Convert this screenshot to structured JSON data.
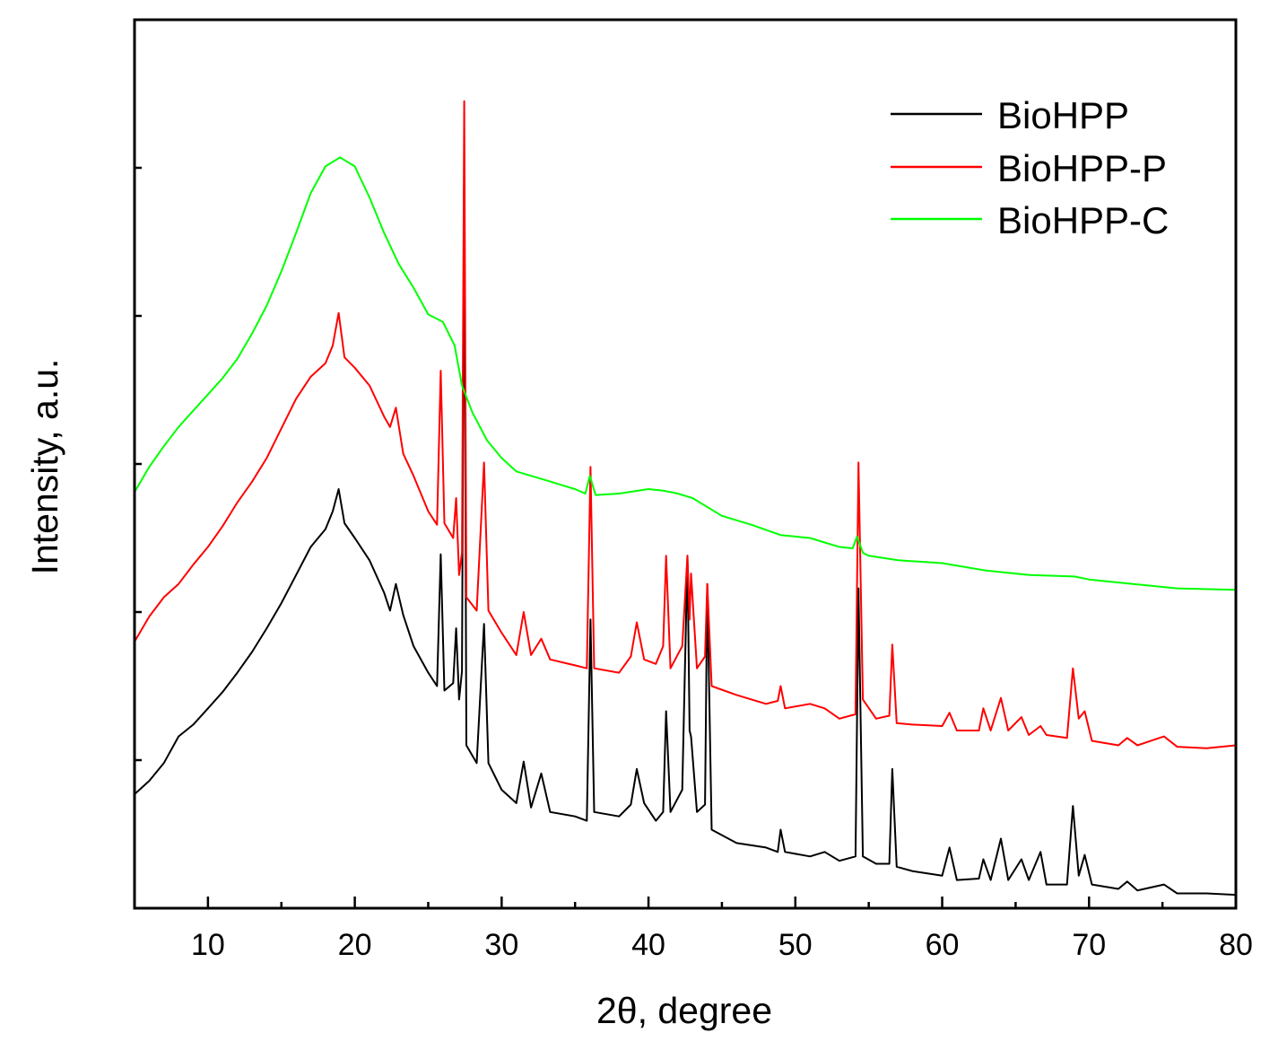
{
  "chart_data": {
    "type": "line",
    "xlabel": "2θ, degree",
    "ylabel": "Intensity, a.u.",
    "xlim": [
      5,
      80
    ],
    "ylim": [
      0,
      6
    ],
    "xticks": [
      10,
      20,
      30,
      40,
      50,
      60,
      70,
      80
    ],
    "xminor_ticks": [
      15,
      25,
      35,
      45,
      55,
      65,
      75
    ],
    "yticks": [
      1,
      2,
      3,
      4,
      5
    ],
    "ytick_labels_shown": false,
    "grid": false,
    "legend": "top-right",
    "series": [
      {
        "name": "BioHPP",
        "color": "#000000",
        "points": [
          [
            5,
            0.77
          ],
          [
            6,
            0.86
          ],
          [
            7,
            0.98
          ],
          [
            8,
            1.16
          ],
          [
            9,
            1.24
          ],
          [
            10,
            1.35
          ],
          [
            11,
            1.46
          ],
          [
            12,
            1.59
          ],
          [
            13,
            1.73
          ],
          [
            14,
            1.89
          ],
          [
            15,
            2.06
          ],
          [
            16,
            2.25
          ],
          [
            17,
            2.44
          ],
          [
            18,
            2.56
          ],
          [
            18.5,
            2.68
          ],
          [
            18.9,
            2.83
          ],
          [
            19.3,
            2.6
          ],
          [
            20,
            2.5
          ],
          [
            21,
            2.35
          ],
          [
            22,
            2.13
          ],
          [
            22.4,
            2.01
          ],
          [
            22.8,
            2.19
          ],
          [
            23.3,
            1.98
          ],
          [
            24,
            1.77
          ],
          [
            25,
            1.59
          ],
          [
            25.6,
            1.5
          ],
          [
            25.85,
            2.39
          ],
          [
            26.1,
            1.47
          ],
          [
            26.7,
            1.52
          ],
          [
            26.9,
            1.89
          ],
          [
            27.1,
            1.41
          ],
          [
            27.3,
            1.6
          ],
          [
            27.45,
            5.0
          ],
          [
            27.6,
            1.1
          ],
          [
            28.3,
            0.98
          ],
          [
            28.8,
            1.92
          ],
          [
            29.1,
            0.98
          ],
          [
            30,
            0.8
          ],
          [
            31,
            0.71
          ],
          [
            31.5,
            0.99
          ],
          [
            32,
            0.68
          ],
          [
            32.7,
            0.91
          ],
          [
            33.3,
            0.65
          ],
          [
            35,
            0.62
          ],
          [
            35.8,
            0.59
          ],
          [
            36.05,
            1.95
          ],
          [
            36.3,
            0.65
          ],
          [
            38,
            0.62
          ],
          [
            38.8,
            0.7
          ],
          [
            39.2,
            0.94
          ],
          [
            39.7,
            0.71
          ],
          [
            40.5,
            0.59
          ],
          [
            41,
            0.65
          ],
          [
            41.2,
            1.33
          ],
          [
            41.5,
            0.65
          ],
          [
            42.3,
            0.8
          ],
          [
            42.65,
            2.38
          ],
          [
            42.8,
            1.2
          ],
          [
            42.9,
            1.16
          ],
          [
            43.3,
            0.65
          ],
          [
            43.85,
            0.7
          ],
          [
            44.0,
            2.19
          ],
          [
            44.3,
            0.53
          ],
          [
            46,
            0.44
          ],
          [
            48,
            0.41
          ],
          [
            48.8,
            0.38
          ],
          [
            49.0,
            0.53
          ],
          [
            49.3,
            0.38
          ],
          [
            51,
            0.35
          ],
          [
            52,
            0.38
          ],
          [
            53,
            0.32
          ],
          [
            54.1,
            0.35
          ],
          [
            54.3,
            2.16
          ],
          [
            54.6,
            0.35
          ],
          [
            55.5,
            0.3
          ],
          [
            56.4,
            0.3
          ],
          [
            56.6,
            0.94
          ],
          [
            56.9,
            0.28
          ],
          [
            58,
            0.25
          ],
          [
            60,
            0.22
          ],
          [
            60.5,
            0.41
          ],
          [
            61,
            0.19
          ],
          [
            62.5,
            0.2
          ],
          [
            62.8,
            0.33
          ],
          [
            63.3,
            0.19
          ],
          [
            64.0,
            0.47
          ],
          [
            64.5,
            0.19
          ],
          [
            65.4,
            0.33
          ],
          [
            65.9,
            0.19
          ],
          [
            66.7,
            0.38
          ],
          [
            67.1,
            0.16
          ],
          [
            68.5,
            0.16
          ],
          [
            68.9,
            0.69
          ],
          [
            69.3,
            0.22
          ],
          [
            69.7,
            0.36
          ],
          [
            70.2,
            0.16
          ],
          [
            72,
            0.13
          ],
          [
            72.6,
            0.18
          ],
          [
            73.3,
            0.12
          ],
          [
            75.1,
            0.16
          ],
          [
            76,
            0.1
          ],
          [
            78,
            0.1
          ],
          [
            80,
            0.09
          ]
        ]
      },
      {
        "name": "BioHPP-P",
        "color": "#ff0000",
        "points": [
          [
            5,
            1.8
          ],
          [
            6,
            1.97
          ],
          [
            7,
            2.1
          ],
          [
            8,
            2.19
          ],
          [
            9,
            2.32
          ],
          [
            10,
            2.44
          ],
          [
            11,
            2.58
          ],
          [
            12,
            2.74
          ],
          [
            13,
            2.88
          ],
          [
            14,
            3.04
          ],
          [
            15,
            3.24
          ],
          [
            16,
            3.44
          ],
          [
            17,
            3.59
          ],
          [
            18,
            3.68
          ],
          [
            18.5,
            3.8
          ],
          [
            18.9,
            4.02
          ],
          [
            19.3,
            3.72
          ],
          [
            20,
            3.65
          ],
          [
            21,
            3.53
          ],
          [
            22,
            3.32
          ],
          [
            22.4,
            3.25
          ],
          [
            22.8,
            3.38
          ],
          [
            23.3,
            3.07
          ],
          [
            24,
            2.92
          ],
          [
            25,
            2.68
          ],
          [
            25.6,
            2.59
          ],
          [
            25.85,
            3.63
          ],
          [
            26.1,
            2.6
          ],
          [
            26.7,
            2.5
          ],
          [
            26.9,
            2.77
          ],
          [
            27.1,
            2.25
          ],
          [
            27.3,
            2.4
          ],
          [
            27.45,
            5.45
          ],
          [
            27.6,
            2.1
          ],
          [
            28.3,
            2.01
          ],
          [
            28.8,
            3.01
          ],
          [
            29.1,
            2.01
          ],
          [
            30,
            1.86
          ],
          [
            31,
            1.71
          ],
          [
            31.5,
            2.0
          ],
          [
            32,
            1.71
          ],
          [
            32.7,
            1.82
          ],
          [
            33.3,
            1.68
          ],
          [
            35,
            1.64
          ],
          [
            35.8,
            1.62
          ],
          [
            36.05,
            2.98
          ],
          [
            36.3,
            1.62
          ],
          [
            38,
            1.59
          ],
          [
            38.8,
            1.7
          ],
          [
            39.2,
            1.93
          ],
          [
            39.7,
            1.68
          ],
          [
            40.5,
            1.65
          ],
          [
            41,
            1.77
          ],
          [
            41.2,
            2.38
          ],
          [
            41.5,
            1.62
          ],
          [
            42.3,
            1.77
          ],
          [
            42.65,
            2.38
          ],
          [
            42.8,
            1.95
          ],
          [
            42.9,
            2.26
          ],
          [
            43.3,
            1.62
          ],
          [
            43.85,
            1.7
          ],
          [
            44.0,
            2.19
          ],
          [
            44.3,
            1.5
          ],
          [
            46,
            1.44
          ],
          [
            48,
            1.38
          ],
          [
            48.8,
            1.4
          ],
          [
            49.0,
            1.5
          ],
          [
            49.3,
            1.35
          ],
          [
            51,
            1.38
          ],
          [
            52,
            1.35
          ],
          [
            53,
            1.28
          ],
          [
            54.1,
            1.31
          ],
          [
            54.3,
            3.01
          ],
          [
            54.6,
            1.41
          ],
          [
            55.5,
            1.28
          ],
          [
            56.4,
            1.3
          ],
          [
            56.6,
            1.78
          ],
          [
            56.9,
            1.25
          ],
          [
            58,
            1.24
          ],
          [
            60,
            1.23
          ],
          [
            60.5,
            1.32
          ],
          [
            61,
            1.2
          ],
          [
            62.5,
            1.2
          ],
          [
            62.8,
            1.35
          ],
          [
            63.3,
            1.2
          ],
          [
            64.0,
            1.42
          ],
          [
            64.5,
            1.2
          ],
          [
            65.4,
            1.29
          ],
          [
            65.9,
            1.17
          ],
          [
            66.7,
            1.23
          ],
          [
            67.1,
            1.17
          ],
          [
            68.5,
            1.15
          ],
          [
            68.9,
            1.62
          ],
          [
            69.3,
            1.28
          ],
          [
            69.7,
            1.33
          ],
          [
            70.2,
            1.13
          ],
          [
            72,
            1.1
          ],
          [
            72.6,
            1.15
          ],
          [
            73.3,
            1.1
          ],
          [
            75.1,
            1.16
          ],
          [
            76,
            1.09
          ],
          [
            78,
            1.08
          ],
          [
            80,
            1.1
          ]
        ]
      },
      {
        "name": "BioHPP-C",
        "color": "#00ff00",
        "points": [
          [
            5,
            2.81
          ],
          [
            6,
            2.98
          ],
          [
            7,
            3.12
          ],
          [
            8,
            3.25
          ],
          [
            9,
            3.36
          ],
          [
            10,
            3.47
          ],
          [
            11,
            3.58
          ],
          [
            12,
            3.71
          ],
          [
            13,
            3.88
          ],
          [
            14,
            4.07
          ],
          [
            15,
            4.3
          ],
          [
            16,
            4.56
          ],
          [
            17,
            4.83
          ],
          [
            18,
            5.01
          ],
          [
            19,
            5.07
          ],
          [
            20,
            5.01
          ],
          [
            21,
            4.8
          ],
          [
            22,
            4.56
          ],
          [
            23,
            4.35
          ],
          [
            24,
            4.19
          ],
          [
            25,
            4.01
          ],
          [
            26,
            3.96
          ],
          [
            26.8,
            3.8
          ],
          [
            27.3,
            3.53
          ],
          [
            28,
            3.35
          ],
          [
            29,
            3.16
          ],
          [
            30,
            3.04
          ],
          [
            31,
            2.95
          ],
          [
            32,
            2.92
          ],
          [
            33,
            2.89
          ],
          [
            34,
            2.86
          ],
          [
            35,
            2.83
          ],
          [
            35.7,
            2.8
          ],
          [
            36.0,
            2.92
          ],
          [
            36.4,
            2.79
          ],
          [
            38,
            2.8
          ],
          [
            40,
            2.83
          ],
          [
            41,
            2.82
          ],
          [
            42,
            2.8
          ],
          [
            43,
            2.77
          ],
          [
            45,
            2.65
          ],
          [
            47,
            2.59
          ],
          [
            49,
            2.52
          ],
          [
            51,
            2.5
          ],
          [
            52,
            2.47
          ],
          [
            53,
            2.44
          ],
          [
            53.9,
            2.43
          ],
          [
            54.2,
            2.51
          ],
          [
            54.6,
            2.4
          ],
          [
            55,
            2.38
          ],
          [
            57,
            2.35
          ],
          [
            60,
            2.33
          ],
          [
            63,
            2.28
          ],
          [
            66,
            2.25
          ],
          [
            69,
            2.24
          ],
          [
            70,
            2.22
          ],
          [
            73,
            2.19
          ],
          [
            76,
            2.16
          ],
          [
            80,
            2.15
          ]
        ]
      }
    ]
  }
}
